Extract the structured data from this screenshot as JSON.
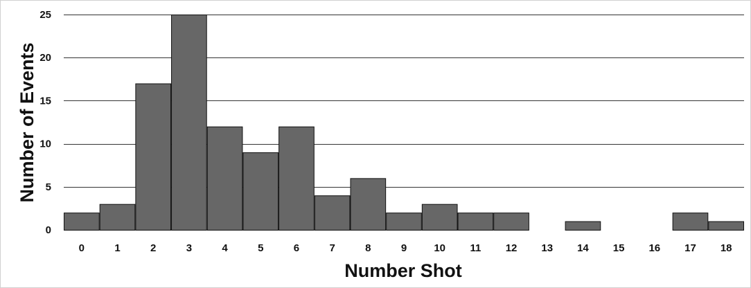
{
  "chart_data": {
    "type": "bar",
    "categories": [
      "0",
      "1",
      "2",
      "3",
      "4",
      "5",
      "6",
      "7",
      "8",
      "9",
      "10",
      "11",
      "12",
      "13",
      "14",
      "15",
      "16",
      "17",
      "18"
    ],
    "values": [
      2,
      3,
      17,
      25,
      12,
      9,
      12,
      4,
      6,
      2,
      3,
      2,
      2,
      0,
      1,
      0,
      0,
      2,
      1
    ],
    "xlabel": "Number Shot",
    "ylabel": "Number of Events",
    "ylim": [
      0,
      25
    ],
    "yticks": [
      0,
      5,
      10,
      15,
      20,
      25
    ],
    "grid": true,
    "colors": {
      "bar": "#676767",
      "bar_edge": "#111111",
      "grid": "#333333"
    }
  }
}
